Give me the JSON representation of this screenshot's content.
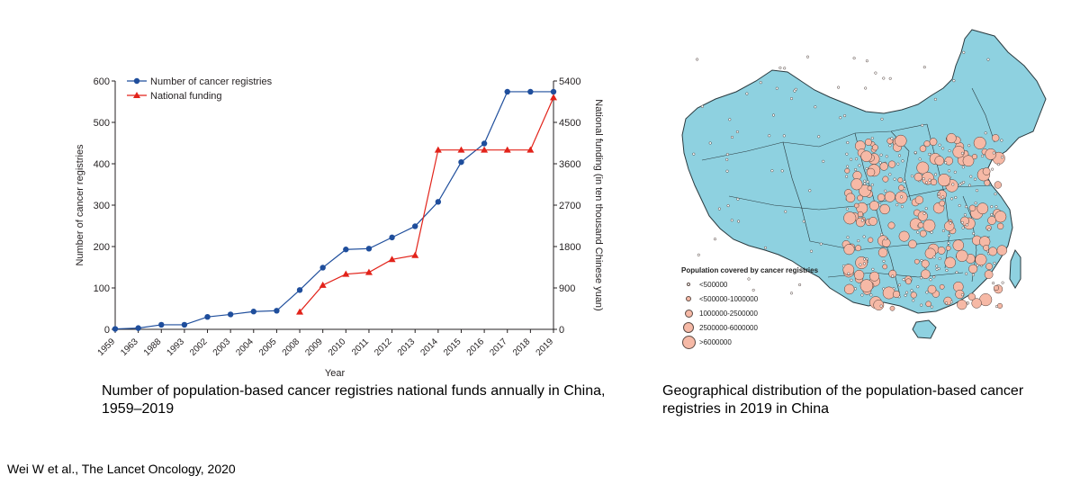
{
  "chart_data": {
    "type": "line",
    "categories": [
      "1959",
      "1963",
      "1988",
      "1993",
      "2002",
      "2003",
      "2004",
      "2005",
      "2008",
      "2009",
      "2010",
      "2011",
      "2012",
      "2013",
      "2014",
      "2015",
      "2016",
      "2017",
      "2018",
      "2019"
    ],
    "xlabel": "Year",
    "ylabel": "Number of cancer registries",
    "ylabel_right": "National funding (in ten thousand Chinese yuan)",
    "ylim": [
      0,
      600
    ],
    "yticks": [
      "0",
      "100",
      "200",
      "300",
      "400",
      "500",
      "600"
    ],
    "ylim_right": [
      0,
      5400
    ],
    "yticks_right": [
      "0",
      "900",
      "1800",
      "2700",
      "3600",
      "4500",
      "5400"
    ],
    "legend_position": "top-left",
    "series": [
      {
        "name": "Number of cancer registries",
        "axis": "left",
        "color": "#1f4e9c",
        "marker": "circle",
        "values": [
          1,
          3,
          11,
          11,
          30,
          36,
          43,
          45,
          95,
          149,
          193,
          195,
          222,
          249,
          308,
          404,
          449,
          574,
          574,
          574
        ]
      },
      {
        "name": "National funding",
        "axis": "right",
        "color": "#e2231a",
        "marker": "triangle",
        "values": [
          null,
          null,
          null,
          null,
          null,
          null,
          null,
          null,
          380,
          960,
          1200,
          1240,
          1520,
          1610,
          3900,
          3900,
          3900,
          3900,
          3900,
          5040
        ]
      }
    ]
  },
  "captions": {
    "left": "Number of population-based cancer registries national funds annually in China, 1959–2019",
    "right": "Geographical distribution of the population-based cancer registries in 2019 in China"
  },
  "citation": "Wei W et al., The Lancet Oncology, 2020",
  "map": {
    "legend_title": "Population covered by cancer registries",
    "legend_items": [
      "<500000",
      "<500000-1000000",
      "1000000-2500000",
      "2500000-6000000",
      ">6000000"
    ],
    "land_color": "#8ed1e0",
    "marker_color": "#f6b9a6"
  }
}
